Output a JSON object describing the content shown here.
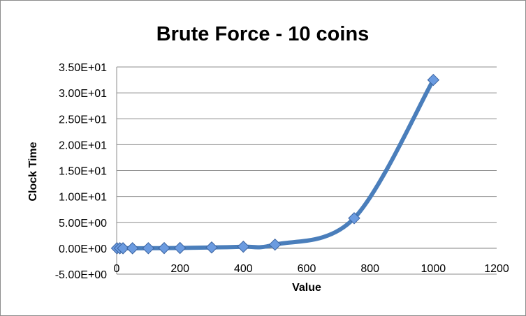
{
  "chart_data": {
    "type": "scatter",
    "title": "Brute Force - 10 coins",
    "xlabel": "Value",
    "ylabel": "Clock Time",
    "xlim": [
      0,
      1200
    ],
    "ylim": [
      -5,
      35
    ],
    "x_ticks": [
      0,
      200,
      400,
      600,
      800,
      1000,
      1200
    ],
    "y_ticks": [
      -5,
      0,
      5,
      10,
      15,
      20,
      25,
      30,
      35
    ],
    "x_tick_labels": [
      "0",
      "200",
      "400",
      "600",
      "800",
      "1000",
      "1200"
    ],
    "y_tick_labels": [
      "-5.00E+00",
      "0.00E+00",
      "5.00E+00",
      "1.00E+01",
      "1.50E+01",
      "2.00E+01",
      "2.50E+01",
      "3.00E+01",
      "3.50E+01"
    ],
    "grid": "horizontal",
    "legend": "none",
    "smooth_line": true,
    "series": [
      {
        "color": "#4a7ebb",
        "marker": "diamond",
        "marker_color": "#6b9be0",
        "x": [
          1,
          10,
          20,
          50,
          100,
          150,
          200,
          300,
          400,
          500,
          750,
          1000
        ],
        "y": [
          0.0,
          0.0,
          0.0,
          0.0,
          0.01,
          0.03,
          0.05,
          0.15,
          0.3,
          0.7,
          5.8,
          32.5
        ]
      }
    ]
  }
}
